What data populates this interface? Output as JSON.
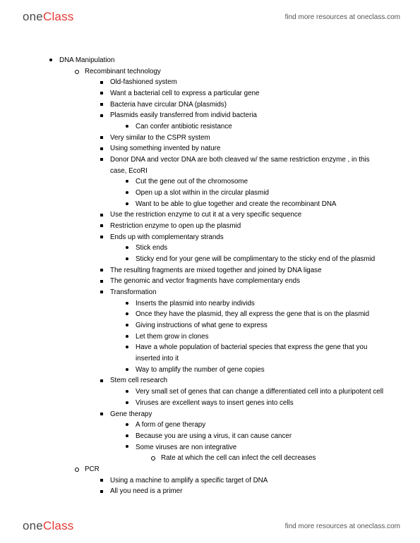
{
  "brand": {
    "part1": "one",
    "part2": "Class"
  },
  "header_link": "find more resources at oneclass.com",
  "footer_link": "find more resources at oneclass.com",
  "notes": {
    "title": "DNA Manipulation",
    "s1": {
      "title": "Recombinant technology",
      "i1": "Old-fashioned system",
      "i2": "Want a bacterial cell to express a particular gene",
      "i3": "Bacteria have circular DNA (plasmids)",
      "i4": "Plasmids easily transferred from individ bacteria",
      "i4a": "Can confer antibiotic resistance",
      "i5": "Very similar to the CSPR system",
      "i6": "Using something invented by nature",
      "i7": "Donor DNA and vector DNA are both cleaved w/ the same restriction enzyme , in this case, EcoRI",
      "i7a": "Cut the gene out of the chromosome",
      "i7b": "Open up a slot within in the circular plasmid",
      "i7c": "Want to be able to glue together and create the recombinant DNA",
      "i8": "Use the restriction enzyme to cut it at a very specific sequence",
      "i9": "Restriction enzyme to open up the plasmid",
      "i10": "Ends up with complementary strands",
      "i10a": "Stick ends",
      "i10b": "Sticky end for your gene will be complimentary to the sticky end of the plasmid",
      "i11": "The resulting fragments are mixed together and joined by DNA ligase",
      "i12": "The genomic and vector fragments have complementary ends",
      "i13": "Transformation",
      "i13a": "Inserts the plasmid into nearby individs",
      "i13b": "Once they have the plasmid, they all express the gene that is on the plasmid",
      "i13c": "Giving instructions of what gene to express",
      "i13d": "Let them grow in clones",
      "i13e": "Have a whole population of bacterial species that express the gene that you inserted into it",
      "i13f": "Way to amplify the number of gene copies",
      "i14": "Stem cell research",
      "i14a": "Very small set of genes that can change a differentiated cell into a pluripotent cell",
      "i14b": "Viruses are excellent ways to insert genes into cells",
      "i15": "Gene therapy",
      "i15a": "A form of gene therapy",
      "i15b": "Because you are using a virus, it can cause cancer",
      "i15c": "Some viruses are non integrative",
      "i15c1": "Rate at which the cell can infect the cell decreases"
    },
    "s2": {
      "title": "PCR",
      "i1": "Using a machine to amplify a specific target of DNA",
      "i2": "All you need is a primer"
    }
  }
}
